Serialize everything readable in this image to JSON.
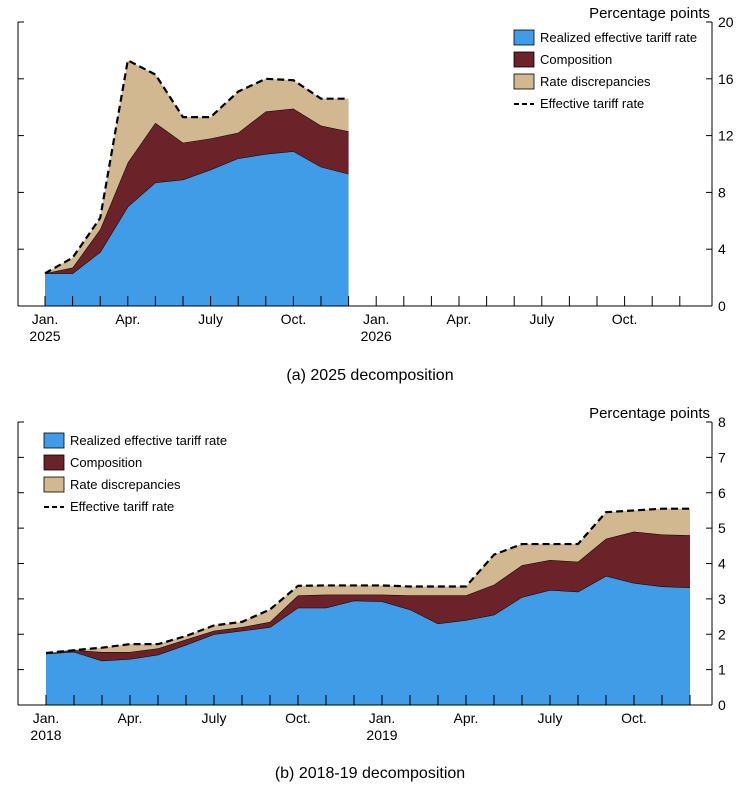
{
  "colors": {
    "realized": "#419ce8",
    "composition": "#6b2228",
    "discrepancy": "#d2b891",
    "effective": "#000000"
  },
  "chart_data": [
    {
      "type": "area",
      "stacked": true,
      "caption": "(a)  2025 decomposition",
      "ylabel": "Percentage points",
      "ylim": [
        0,
        20
      ],
      "yticks": [
        0,
        4,
        8,
        12,
        16,
        20
      ],
      "y_axis_side": "right",
      "x_range": [
        "2025-01",
        "2026-12"
      ],
      "xtick_labels": [
        {
          "month_index": 0,
          "label": "Jan.",
          "year": "2025"
        },
        {
          "month_index": 3,
          "label": "Apr."
        },
        {
          "month_index": 6,
          "label": "July"
        },
        {
          "month_index": 9,
          "label": "Oct."
        },
        {
          "month_index": 12,
          "label": "Jan.",
          "year": "2026"
        },
        {
          "month_index": 15,
          "label": "Apr."
        },
        {
          "month_index": 18,
          "label": "July"
        },
        {
          "month_index": 21,
          "label": "Oct."
        }
      ],
      "x": [
        "2025-01",
        "2025-02",
        "2025-03",
        "2025-04",
        "2025-05",
        "2025-06",
        "2025-07",
        "2025-08",
        "2025-09",
        "2025-10",
        "2025-11",
        "2025-12"
      ],
      "legend_placement": "top-right",
      "series": [
        {
          "name": "Realized effective tariff rate",
          "values": [
            2.3,
            2.3,
            3.8,
            7.0,
            8.7,
            8.9,
            9.6,
            10.4,
            10.7,
            10.9,
            9.8,
            9.3
          ]
        },
        {
          "name": "Composition",
          "values": [
            0,
            0.4,
            1.6,
            3.1,
            4.2,
            2.6,
            2.2,
            1.8,
            3.0,
            3.0,
            2.9,
            3.0
          ]
        },
        {
          "name": "Rate discrepancies",
          "values": [
            0,
            0.7,
            0.8,
            7.2,
            3.4,
            1.8,
            1.5,
            2.9,
            2.3,
            2.0,
            1.9,
            2.3
          ]
        }
      ],
      "line": {
        "name": "Effective tariff rate",
        "values": [
          2.3,
          3.4,
          6.2,
          17.3,
          16.3,
          13.3,
          13.3,
          15.1,
          16.0,
          15.9,
          14.6,
          14.6
        ]
      }
    },
    {
      "type": "area",
      "stacked": true,
      "caption": "(b)  2018-19 decomposition",
      "ylabel": "Percentage points",
      "ylim": [
        0,
        8
      ],
      "yticks": [
        0,
        1,
        2,
        3,
        4,
        5,
        6,
        7,
        8
      ],
      "y_axis_side": "right",
      "x_range": [
        "2018-01",
        "2019-12"
      ],
      "xtick_labels": [
        {
          "month_index": 0,
          "label": "Jan.",
          "year": "2018"
        },
        {
          "month_index": 3,
          "label": "Apr."
        },
        {
          "month_index": 6,
          "label": "July"
        },
        {
          "month_index": 9,
          "label": "Oct."
        },
        {
          "month_index": 12,
          "label": "Jan.",
          "year": "2019"
        },
        {
          "month_index": 15,
          "label": "Apr."
        },
        {
          "month_index": 18,
          "label": "July"
        },
        {
          "month_index": 21,
          "label": "Oct."
        }
      ],
      "x": [
        "2018-01",
        "2018-02",
        "2018-03",
        "2018-04",
        "2018-05",
        "2018-06",
        "2018-07",
        "2018-08",
        "2018-09",
        "2018-10",
        "2018-11",
        "2018-12",
        "2019-01",
        "2019-02",
        "2019-03",
        "2019-04",
        "2019-05",
        "2019-06",
        "2019-07",
        "2019-08",
        "2019-09",
        "2019-10",
        "2019-11",
        "2019-12"
      ],
      "legend_placement": "top-left",
      "series": [
        {
          "name": "Realized effective tariff rate",
          "values": [
            1.45,
            1.5,
            1.25,
            1.3,
            1.42,
            1.7,
            2.0,
            2.1,
            2.2,
            2.75,
            2.75,
            2.95,
            2.93,
            2.7,
            2.3,
            2.4,
            2.55,
            3.05,
            3.25,
            3.2,
            3.65,
            3.45,
            3.35,
            3.32
          ]
        },
        {
          "name": "Composition",
          "values": [
            0,
            0.05,
            0.25,
            0.2,
            0.18,
            0.15,
            0.1,
            0.1,
            0.15,
            0.35,
            0.37,
            0.17,
            0.19,
            0.4,
            0.8,
            0.7,
            0.85,
            0.9,
            0.85,
            0.85,
            1.05,
            1.45,
            1.47,
            1.48
          ]
        },
        {
          "name": "Rate discrepancies",
          "values": [
            0.02,
            0,
            0.12,
            0.22,
            0.12,
            0.1,
            0.15,
            0.15,
            0.35,
            0.27,
            0.26,
            0.26,
            0.26,
            0.25,
            0.25,
            0.25,
            0.85,
            0.6,
            0.45,
            0.5,
            0.75,
            0.6,
            0.73,
            0.75
          ]
        }
      ],
      "line": {
        "name": "Effective tariff rate",
        "values": [
          1.47,
          1.55,
          1.62,
          1.72,
          1.72,
          1.95,
          2.25,
          2.35,
          2.7,
          3.37,
          3.38,
          3.38,
          3.38,
          3.35,
          3.35,
          3.35,
          4.25,
          4.55,
          4.55,
          4.55,
          5.45,
          5.5,
          5.55,
          5.55
        ]
      }
    }
  ]
}
